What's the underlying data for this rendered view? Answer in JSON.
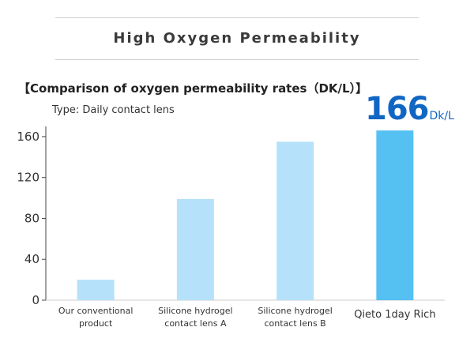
{
  "header": {
    "title": "High Oxygen Permeability"
  },
  "chart_data": {
    "type": "bar",
    "title": "【Comparison of oxygen permeability rates（DK/L）】",
    "subtitle": "Type: Daily contact lens",
    "xlabel": "",
    "ylabel": "",
    "ylim": [
      0,
      170
    ],
    "yticks": [
      0,
      40,
      80,
      120,
      160
    ],
    "grid": false,
    "categories": [
      [
        "Our conventional",
        "product"
      ],
      [
        "Silicone hydrogel",
        "contact lens A"
      ],
      [
        "Silicone hydrogel",
        "contact lens B"
      ],
      [
        "Qieto 1day Rich"
      ]
    ],
    "values": [
      20,
      99,
      155,
      166
    ],
    "colors": [
      "#b6e1fa",
      "#b6e1fa",
      "#b6e1fa",
      "#55c1f3"
    ],
    "highlight": {
      "value": "166",
      "unit": "Dk/L",
      "color": "#1166c4"
    }
  }
}
